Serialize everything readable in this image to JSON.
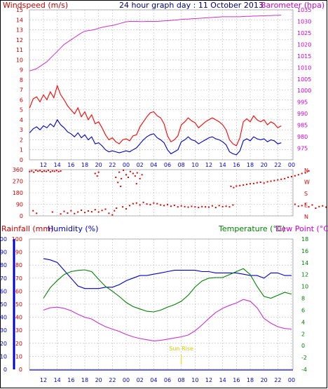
{
  "header": {
    "windspeed_label": "Windspeed (m/s)",
    "title": "24 hour graph day : 11 October 2013",
    "barometer_label": "Barometer (hpa)"
  },
  "lower_header": {
    "rainfall_label": "Rainfall (mm)",
    "humidity_label": "Humidity (%)",
    "temperature_label": "Temperature (°C)",
    "dewpoint_label": "Dew Point (°C)"
  },
  "annotation": {
    "sunrise": "Sun Rise"
  },
  "colors": {
    "wind_gust": "#ff0000",
    "wind_avg": "#0000cc",
    "barometer": "#cc33cc",
    "direction": "#dd0000",
    "humidity": "#0000cc",
    "temperature": "#008000",
    "dewpoint": "#cc33cc",
    "sunrise": "#dddd00",
    "left_axis": "#cc0000",
    "right_axis_top": "#cc00cc",
    "right_axis_bottom": "#008000",
    "blue_axis": "#0000cc",
    "frame": "#0000cc"
  },
  "chart_data": [
    {
      "type": "line",
      "name": "wind-barometer",
      "x_ticks": [
        "12",
        "14",
        "16",
        "18",
        "20",
        "22",
        "00",
        "02",
        "04",
        "06",
        "08",
        "10",
        "12",
        "14",
        "16",
        "18",
        "20",
        "22",
        "00"
      ],
      "left_axis": {
        "range": [
          0,
          15
        ],
        "ticks": [
          "0",
          "1",
          "2",
          "3",
          "4",
          "5",
          "6",
          "7",
          "8",
          "9",
          "10",
          "11",
          "12",
          "13",
          "14",
          "15"
        ]
      },
      "right_axis": {
        "range": [
          970,
          1035
        ],
        "ticks": [
          "975",
          "980",
          "985",
          "990",
          "995",
          "1000",
          "1005",
          "1010",
          "1015",
          "1020",
          "1025",
          "1030",
          "1035"
        ]
      },
      "hours": [
        0,
        0.5,
        1,
        1.5,
        2,
        2.5,
        3,
        3.5,
        4,
        4.5,
        5,
        5.5,
        6,
        6.5,
        7,
        7.5,
        8,
        8.5,
        9,
        9.5,
        10,
        10.5,
        11,
        11.5,
        12,
        12.5,
        13,
        13.5,
        14,
        14.5,
        15,
        15.5,
        16,
        16.5,
        17,
        17.5,
        18,
        18.5,
        19,
        19.5,
        20,
        20.5,
        21,
        21.5,
        22,
        22.5,
        23,
        23.5,
        24,
        24.5,
        25,
        25.5,
        26,
        26.5,
        27,
        27.5,
        28,
        28.5,
        29,
        29.5,
        30,
        30.5,
        31,
        31.5,
        32,
        32.5,
        33,
        33.5,
        34,
        34.5,
        35,
        35.5,
        36,
        36.5
      ],
      "gust": [
        5.2,
        6.1,
        6.3,
        5.8,
        6.5,
        6.0,
        6.8,
        6.2,
        7.4,
        6.5,
        6.0,
        5.4,
        5.0,
        4.6,
        5.2,
        4.3,
        4.8,
        4.0,
        4.5,
        3.6,
        3.8,
        3.2,
        2.5,
        2.0,
        2.2,
        1.8,
        1.6,
        2.0,
        2.1,
        1.9,
        2.4,
        2.5,
        3.3,
        3.8,
        4.3,
        4.7,
        4.8,
        4.4,
        4.2,
        3.6,
        2.4,
        1.8,
        2.0,
        2.4,
        3.5,
        3.8,
        4.2,
        3.9,
        3.7,
        3.2,
        3.5,
        3.8,
        4.0,
        4.2,
        4.0,
        3.8,
        3.5,
        3.0,
        2.0,
        1.6,
        1.4,
        2.2,
        3.8,
        4.1,
        3.8,
        4.4,
        4.0,
        3.8,
        4.0,
        3.5,
        3.8,
        3.6,
        3.2,
        3.4
      ],
      "avg": [
        2.7,
        3.1,
        3.3,
        3.0,
        3.4,
        3.2,
        3.6,
        3.3,
        4.0,
        3.5,
        3.2,
        2.8,
        2.6,
        2.3,
        2.7,
        2.2,
        2.5,
        2.0,
        2.3,
        1.6,
        1.7,
        1.4,
        1.0,
        0.8,
        0.9,
        0.8,
        0.7,
        0.8,
        0.9,
        0.8,
        1.0,
        1.2,
        1.6,
        2.0,
        2.3,
        2.5,
        2.6,
        2.2,
        2.0,
        1.7,
        1.0,
        0.6,
        0.8,
        1.0,
        1.8,
        2.0,
        2.3,
        2.0,
        1.9,
        1.6,
        1.8,
        2.0,
        2.2,
        2.3,
        2.1,
        2.0,
        1.8,
        1.5,
        0.8,
        0.6,
        0.5,
        0.9,
        1.9,
        2.1,
        1.9,
        2.3,
        2.1,
        2.0,
        2.1,
        1.8,
        2.0,
        1.9,
        1.6,
        1.7
      ],
      "pressure": [
        1008.5,
        1009,
        1009.5,
        1010.5,
        1011.5,
        1012.5,
        1014,
        1015.5,
        1017,
        1018.5,
        1020,
        1021,
        1022,
        1023,
        1024,
        1025,
        1025.7,
        1026,
        1026.2,
        1026.5,
        1027,
        1027.4,
        1027.7,
        1028,
        1028.2,
        1028.6,
        1029,
        1029.4,
        1029.8,
        1030,
        1030,
        1030,
        1029.9,
        1029.9,
        1030,
        1030,
        1030,
        1030,
        1030.1,
        1030.2,
        1030.3,
        1030.4,
        1030.5,
        1030.7,
        1030.8,
        1031,
        1031,
        1031.1,
        1031.2,
        1031.3,
        1031.4,
        1031.5,
        1031.6,
        1031.7,
        1031.8,
        1031.9,
        1032,
        1032,
        1032,
        1032,
        1032,
        1032,
        1032.1,
        1032.2,
        1032.2,
        1032.3,
        1032.3,
        1032.4,
        1032.4,
        1032.5,
        1032.5,
        1032.6,
        1032.6,
        1032.7
      ]
    },
    {
      "type": "scatter",
      "name": "wind-direction",
      "left_axis": {
        "range": [
          0,
          360
        ],
        "ticks": [
          "0",
          "90",
          "180",
          "270",
          "360"
        ]
      },
      "compass": [
        "N",
        "W",
        "S",
        "E",
        "N"
      ],
      "points": [
        [
          0,
          345
        ],
        [
          0.3,
          350
        ],
        [
          0.6,
          340
        ],
        [
          0.9,
          355
        ],
        [
          1.2,
          348
        ],
        [
          1.5,
          352
        ],
        [
          1.8,
          344
        ],
        [
          2.1,
          350
        ],
        [
          2.4,
          346
        ],
        [
          2.7,
          354
        ],
        [
          3,
          342
        ],
        [
          3.3,
          350
        ],
        [
          3.6,
          347
        ],
        [
          3.9,
          353
        ],
        [
          4.2,
          345
        ],
        [
          4.5,
          349
        ],
        [
          0.5,
          40
        ],
        [
          1,
          20
        ],
        [
          3.3,
          30
        ],
        [
          4.5,
          15
        ],
        [
          5,
          35
        ],
        [
          5.5,
          22
        ],
        [
          6,
          40
        ],
        [
          6.5,
          18
        ],
        [
          7,
          30
        ],
        [
          7.5,
          44
        ],
        [
          8,
          26
        ],
        [
          8.5,
          38
        ],
        [
          9,
          32
        ],
        [
          9.5,
          48
        ],
        [
          10,
          30
        ],
        [
          10.5,
          42
        ],
        [
          11,
          52
        ],
        [
          11.5,
          20
        ],
        [
          12,
          8
        ],
        [
          9.5,
          330
        ],
        [
          9.8,
          310
        ],
        [
          10,
          340
        ],
        [
          12.5,
          300
        ],
        [
          12.8,
          260
        ],
        [
          13,
          340
        ],
        [
          13.3,
          290
        ],
        [
          13.6,
          355
        ],
        [
          14,
          320
        ],
        [
          14.3,
          300
        ],
        [
          14.6,
          345
        ],
        [
          15,
          330
        ],
        [
          15.3,
          310
        ],
        [
          15.6,
          335
        ],
        [
          16,
          290
        ],
        [
          16.3,
          320
        ],
        [
          13.2,
          230
        ],
        [
          15.5,
          250
        ],
        [
          12.3,
          40
        ],
        [
          12.6,
          60
        ],
        [
          13.5,
          70
        ],
        [
          14,
          55
        ],
        [
          14.5,
          80
        ],
        [
          15,
          95
        ],
        [
          15.5,
          100
        ],
        [
          16,
          85
        ],
        [
          16.5,
          105
        ],
        [
          17,
          92
        ],
        [
          17.5,
          88
        ],
        [
          18,
          100
        ],
        [
          18.5,
          95
        ],
        [
          19,
          85
        ],
        [
          19.5,
          80
        ],
        [
          20,
          88
        ],
        [
          20.5,
          75
        ],
        [
          21,
          82
        ],
        [
          21.5,
          70
        ],
        [
          22,
          78
        ],
        [
          22.5,
          72
        ],
        [
          23,
          68
        ],
        [
          23.5,
          74
        ],
        [
          24,
          70
        ],
        [
          24.5,
          66
        ],
        [
          25,
          72
        ],
        [
          25.5,
          70
        ],
        [
          26,
          68
        ],
        [
          26.5,
          78
        ],
        [
          27,
          65
        ],
        [
          27.5,
          80
        ],
        [
          28,
          72
        ],
        [
          28.5,
          75
        ],
        [
          29,
          70
        ],
        [
          29.5,
          85
        ],
        [
          29.2,
          230
        ],
        [
          29.6,
          220
        ],
        [
          30,
          232
        ],
        [
          30.5,
          236
        ],
        [
          31,
          240
        ],
        [
          31.5,
          245
        ],
        [
          32,
          250
        ],
        [
          32.5,
          252
        ],
        [
          33,
          258
        ],
        [
          33.5,
          262
        ],
        [
          34,
          255
        ],
        [
          34.5,
          265
        ],
        [
          35,
          270
        ],
        [
          35.5,
          275
        ],
        [
          36,
          280
        ],
        [
          36.5,
          285
        ],
        [
          37,
          290
        ],
        [
          37.5,
          300
        ],
        [
          38,
          305
        ],
        [
          38.5,
          312
        ],
        [
          39,
          320
        ],
        [
          39.5,
          330
        ],
        [
          40,
          335
        ],
        [
          40.5,
          350
        ],
        [
          38.5,
          90
        ],
        [
          39,
          75
        ],
        [
          39.5,
          80
        ],
        [
          40,
          95
        ],
        [
          40.5,
          70
        ],
        [
          41,
          85
        ],
        [
          41.5,
          60
        ],
        [
          42,
          72
        ],
        [
          42.5,
          78
        ],
        [
          43,
          68
        ],
        [
          43.5,
          82
        ],
        [
          44,
          74
        ],
        [
          44.5,
          70
        ],
        [
          45,
          80
        ],
        [
          45.5,
          66
        ],
        [
          46,
          72
        ],
        [
          46.5,
          64
        ],
        [
          47,
          76
        ],
        [
          47.5,
          60
        ]
      ]
    },
    {
      "type": "line",
      "name": "humidity-temperature",
      "left_axis": {
        "range": [
          0,
          100
        ],
        "ticks": [
          "0",
          "10",
          "20",
          "30",
          "40",
          "50",
          "60",
          "70",
          "80",
          "90",
          "100"
        ]
      },
      "right_axis": {
        "range": [
          -4,
          18
        ],
        "ticks": [
          "-4",
          "-2",
          "0",
          "2",
          "4",
          "6",
          "8",
          "10",
          "12",
          "14",
          "16",
          "18"
        ]
      },
      "hours": [
        0,
        1,
        2,
        3,
        4,
        5,
        6,
        7,
        8,
        9,
        10,
        11,
        12,
        13,
        14,
        15,
        16,
        17,
        18,
        19,
        20,
        21,
        22,
        23,
        24,
        25,
        26,
        27,
        28,
        29,
        30,
        31,
        32,
        33,
        34,
        35,
        36
      ],
      "humidity": [
        85,
        84,
        82,
        76,
        70,
        64,
        62,
        62,
        62,
        63,
        63,
        65,
        68,
        70,
        72,
        72,
        73,
        74,
        75,
        76,
        76,
        76,
        76,
        75,
        75,
        74,
        74,
        74,
        74,
        73,
        72,
        72,
        70,
        74,
        74,
        72,
        72
      ],
      "temperature": [
        8,
        9.8,
        11,
        12,
        12.5,
        12.7,
        12.8,
        12.5,
        11.2,
        10,
        9.2,
        8.3,
        7.3,
        6.6,
        6.2,
        5.8,
        5.7,
        6,
        6.5,
        6.9,
        7.5,
        8.5,
        9.9,
        10.9,
        11.4,
        11.5,
        11.5,
        12,
        12.5,
        13,
        12,
        10,
        8.3,
        8,
        8.5,
        9,
        8.7
      ],
      "dewpoint": [
        6,
        6.4,
        6.5,
        6.3,
        5.9,
        5.3,
        4.8,
        4.5,
        3.8,
        3.2,
        2.8,
        2.4,
        1.9,
        1.5,
        1.2,
        1.0,
        0.8,
        0.9,
        1.1,
        1.3,
        1.5,
        1.8,
        2.5,
        3.5,
        4.6,
        5.6,
        6.3,
        6.8,
        7.2,
        7.8,
        7.5,
        6.4,
        4.6,
        3.8,
        3.2,
        2.9,
        2.8
      ],
      "sunrise_hour": 20
    }
  ]
}
